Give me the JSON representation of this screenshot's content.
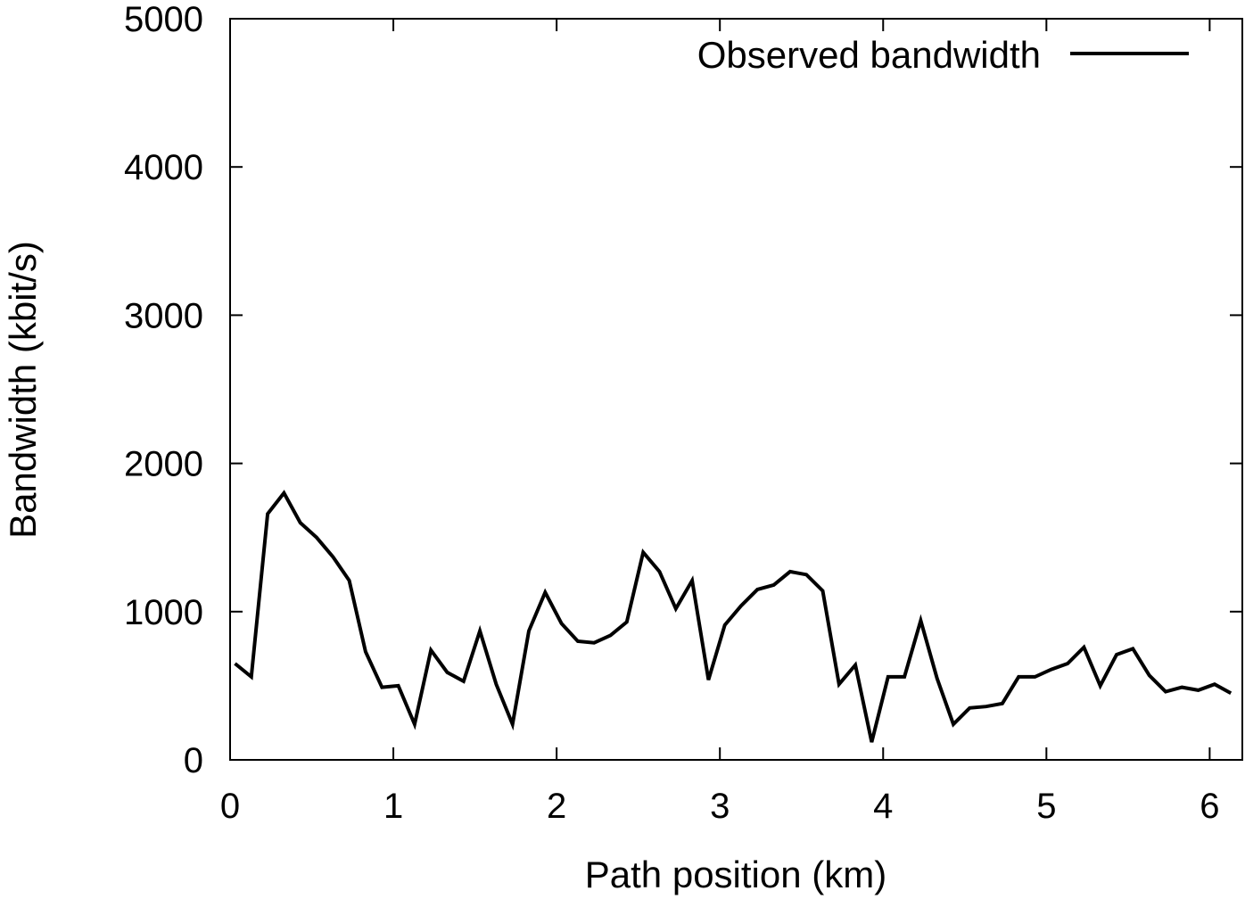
{
  "chart_data": {
    "type": "line",
    "xlabel": "Path position (km)",
    "ylabel": "Bandwidth (kbit/s)",
    "xlim": [
      0,
      6.2
    ],
    "ylim": [
      0,
      5000
    ],
    "xticks": [
      0,
      1,
      2,
      3,
      4,
      5,
      6
    ],
    "yticks": [
      0,
      1000,
      2000,
      3000,
      4000,
      5000
    ],
    "grid": false,
    "legend_position": "top-right",
    "series": [
      {
        "name": "Observed bandwidth",
        "color": "#000000",
        "x": [
          0.03,
          0.13,
          0.23,
          0.33,
          0.43,
          0.53,
          0.63,
          0.73,
          0.83,
          0.93,
          1.03,
          1.13,
          1.23,
          1.33,
          1.43,
          1.53,
          1.63,
          1.73,
          1.83,
          1.93,
          2.03,
          2.13,
          2.23,
          2.33,
          2.43,
          2.53,
          2.63,
          2.73,
          2.83,
          2.93,
          3.03,
          3.13,
          3.23,
          3.33,
          3.43,
          3.53,
          3.63,
          3.73,
          3.83,
          3.93,
          4.03,
          4.13,
          4.23,
          4.33,
          4.43,
          4.53,
          4.63,
          4.73,
          4.83,
          4.93,
          5.03,
          5.13,
          5.23,
          5.33,
          5.43,
          5.53,
          5.63,
          5.73,
          5.83,
          5.93,
          6.03,
          6.13
        ],
        "values": [
          650,
          560,
          1660,
          1800,
          1600,
          1500,
          1370,
          1210,
          730,
          490,
          500,
          240,
          740,
          590,
          530,
          870,
          510,
          240,
          870,
          1130,
          920,
          800,
          790,
          840,
          930,
          1400,
          1270,
          1020,
          1210,
          540,
          910,
          1040,
          1150,
          1180,
          1270,
          1250,
          1140,
          510,
          640,
          120,
          560,
          560,
          940,
          550,
          240,
          350,
          360,
          380,
          560,
          560,
          610,
          650,
          760,
          500,
          710,
          750,
          570,
          460,
          490,
          470,
          510,
          450
        ]
      }
    ]
  }
}
